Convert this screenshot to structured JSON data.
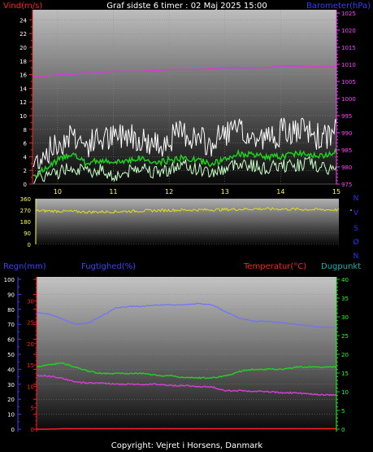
{
  "colors": {
    "wind_label": "#ff2020",
    "baro_label": "#3a3aff",
    "baro_axis": "#ff40ff",
    "humidity": "#4040ff",
    "temp": "#ff2020",
    "dew": "#20b0b0",
    "rain_axis": "#4040ff",
    "temp_axis": "#ff2020",
    "right_axis": "#20ff20",
    "wind_avg": "#20d020",
    "wind_gust": "#ffffff",
    "wind_low": "#c8ffc8",
    "baro_line": "#d040d0",
    "dir_line": "#e0e020",
    "compass": "#3030ff"
  },
  "header": {
    "title": "Graf sidste 6 timer : 02 Maj 2025 15:00",
    "wind_label": "Vind(m/s)",
    "baro_label": "Barometer(hPa)"
  },
  "wind_axis_ticks": [
    "24",
    "22",
    "20",
    "18",
    "16",
    "14",
    "12",
    "10",
    "8",
    "6",
    "4",
    "2",
    "0"
  ],
  "baro_axis_ticks": [
    "1025",
    "1020",
    "1015",
    "1010",
    "1005",
    "1000",
    "995",
    "990",
    "985",
    "980",
    "975"
  ],
  "time_ticks": [
    "10",
    "11",
    "12",
    "13",
    "14",
    "15"
  ],
  "dir_axis_ticks": [
    "360",
    "270",
    "180",
    "90",
    "0"
  ],
  "compass": [
    "N",
    "V",
    "S",
    "Ø",
    "N"
  ],
  "lower_header": {
    "rain": "Regn(mm)",
    "humidity": "Fugtighed(%)",
    "temp": "Temperatur(°C)",
    "dew": "Dugpunkt"
  },
  "rain_axis_ticks": [
    "100",
    "90",
    "80",
    "70",
    "60",
    "50",
    "40",
    "30",
    "20",
    "10",
    "0"
  ],
  "temp_axis_ticks": [
    "30",
    "25",
    "20",
    "15",
    "10",
    "5",
    "0"
  ],
  "right_axis_ticks": [
    "40",
    "35",
    "30",
    "25",
    "20",
    "15",
    "10",
    "5",
    "0"
  ],
  "footer": "Copyright: Vejret i Horsens, Danmark",
  "chart_data": [
    {
      "type": "line",
      "title": "Graf sidste 6 timer : 02 Maj 2025 15:00",
      "x": [
        9.55,
        9.75,
        10.0,
        10.25,
        10.5,
        10.75,
        11.0,
        11.25,
        11.5,
        11.75,
        12.0,
        12.25,
        12.5,
        12.75,
        13.0,
        13.25,
        13.5,
        13.75,
        14.0,
        14.25,
        14.5,
        14.75,
        15.0
      ],
      "xlim": [
        9.55,
        15.0
      ],
      "ylim": [
        0,
        25
      ],
      "y2lim": [
        975,
        1025
      ],
      "series": [
        {
          "name": "",
          "values": [
            1.2,
            2.0,
            3.5,
            4.5,
            3.0,
            3.5,
            3.0,
            3.5,
            3.8,
            3.0,
            3.5,
            3.8,
            3.5,
            3.0,
            3.5,
            4.5,
            4.2,
            4.0,
            4.0,
            4.5,
            4.5,
            4.0,
            5.0
          ]
        },
        {
          "name": "",
          "values": [
            3,
            5,
            6,
            8,
            6,
            7,
            7,
            8,
            7,
            6,
            7,
            8,
            7,
            6,
            8,
            8,
            7,
            7,
            8,
            8,
            8,
            7,
            8
          ]
        },
        {
          "name": "",
          "values": [
            0.5,
            1.0,
            1.5,
            2.5,
            1.5,
            2.0,
            1.0,
            1.5,
            2.5,
            1.5,
            2.0,
            2.5,
            2.0,
            1.5,
            2.0,
            3.0,
            2.5,
            2.0,
            2.5,
            2.5,
            3.0,
            2.0,
            2.0
          ]
        },
        {
          "name": "",
          "axis": "right",
          "values": [
            1006.5,
            1006.5,
            1007.0,
            1007.0,
            1007.5,
            1007.5,
            1008.0,
            1008.0,
            1008.0,
            1008.2,
            1008.5,
            1008.5,
            1008.5,
            1008.7,
            1009.0,
            1009.0,
            1009.0,
            1009.0,
            1009.5,
            1009.5,
            1009.3,
            1009.3,
            1009.3
          ]
        }
      ]
    },
    {
      "type": "line",
      "ylim": [
        0,
        360
      ],
      "x": [
        9.55,
        10.0,
        10.5,
        11.0,
        11.5,
        12.0,
        12.5,
        13.0,
        13.5,
        14.0,
        14.5,
        15.0
      ],
      "series": [
        {
          "name": "",
          "values": [
            265,
            262,
            255,
            258,
            265,
            270,
            272,
            275,
            280,
            278,
            275,
            272
          ]
        }
      ]
    },
    {
      "type": "line",
      "ylim": [
        0,
        100
      ],
      "x": [
        9.55,
        9.75,
        10.0,
        10.25,
        10.5,
        10.75,
        11.0,
        11.25,
        11.5,
        11.75,
        12.0,
        12.25,
        12.5,
        12.75,
        13.0,
        13.25,
        13.5,
        13.75,
        14.0,
        14.25,
        14.5,
        14.75,
        15.0
      ],
      "series": [
        {
          "name": "Fugtighed(%)",
          "values": [
            78,
            77,
            74,
            70,
            71,
            76,
            81,
            82,
            82,
            83,
            83,
            83,
            84,
            83,
            78,
            74,
            72,
            72,
            71,
            70,
            69,
            68,
            68
          ]
        },
        {
          "name": "Temperatur(°C)",
          "values": [
            0,
            0,
            0.3,
            0.3,
            0.3,
            0.3,
            0.3,
            0.3,
            0.3,
            0.3,
            0.3,
            0.3,
            0.3,
            0.3,
            0.3,
            0.3,
            0.3,
            0.3,
            0.3,
            0.3,
            0.3,
            0.3,
            0.3
          ]
        }
      ]
    },
    {
      "type": "line",
      "ylim": [
        0,
        35
      ],
      "x": [
        9.55,
        9.75,
        10.0,
        10.25,
        10.5,
        10.75,
        11.0,
        11.25,
        11.5,
        11.75,
        12.0,
        12.25,
        12.5,
        12.75,
        13.0,
        13.25,
        13.5,
        13.75,
        14.0,
        14.25,
        14.5,
        14.75,
        15.0
      ],
      "series": [
        {
          "name": "Dugpunkt",
          "values": [
            12.5,
            12.5,
            12.0,
            11.0,
            10.8,
            10.8,
            10.5,
            10.5,
            10.5,
            10.5,
            10.2,
            10.2,
            10.0,
            9.8,
            9.0,
            9.0,
            8.8,
            8.8,
            8.5,
            8.5,
            8.2,
            8.0,
            8.0
          ]
        },
        {
          "name": "",
          "values": [
            14.5,
            15.0,
            15.5,
            14.5,
            13.5,
            13.0,
            13.0,
            13.0,
            13.0,
            12.5,
            12.5,
            12.0,
            12.0,
            12.0,
            12.5,
            13.5,
            14.0,
            14.0,
            14.0,
            14.5,
            14.5,
            14.5,
            14.5
          ]
        }
      ]
    }
  ]
}
